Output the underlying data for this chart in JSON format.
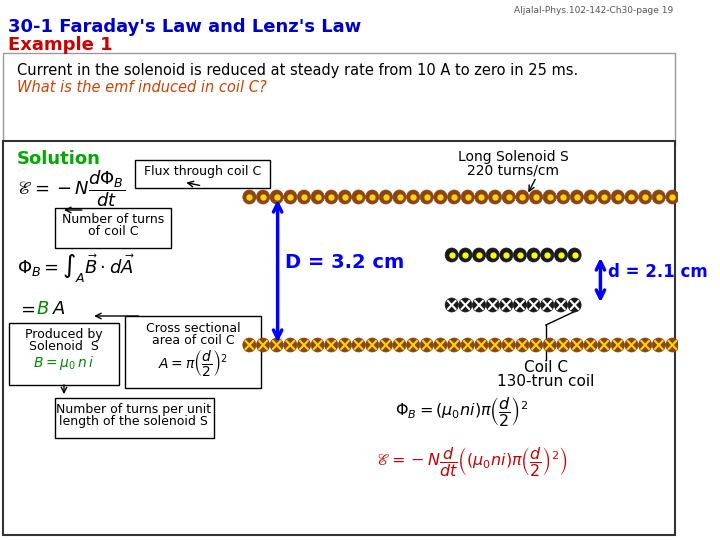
{
  "bg_color": "#f0f0f0",
  "title_line1": "30-1 Faraday's Law and Lenz's Law",
  "title_line2": "Example 1",
  "watermark": "Aljalal-Phys.102-142-Ch30-page 19",
  "problem_text": "Current in the solenoid is reduced at steady rate from 10 A to zero in 25 ms.",
  "problem_question": "What is the emf induced in coil C?",
  "solution_label": "Solution",
  "solenoid_label1": "Long Solenoid S",
  "solenoid_label2": "220 turns/cm",
  "coil_label1": "Coil C",
  "coil_label2": "130-trun coil",
  "D_label": "D = 3.2 cm",
  "d_label": "d = 2.1 cm",
  "flux_box_text": "Flux through coil C",
  "num_turns_box1": "Number of turns",
  "num_turns_box2": "of coil C",
  "produced_box1": "Produced by",
  "produced_box2": "Solenoid  S",
  "produced_box3": "B = μ₀ n i",
  "cross_sec_box1": "Cross sectional",
  "cross_sec_box2": "area of coil C",
  "cross_sec_box3": "A = π ( d/2 )²",
  "num_turns_per_unit1": "Number of turns per unit",
  "num_turns_per_unit2": "length of the solenoid S",
  "title_color": "#0000cc",
  "example_color": "#cc0000",
  "problem_color": "#000000",
  "question_color": "#cc4400",
  "solution_color": "#00aa00",
  "blue_color": "#0000ff",
  "green_color": "#008800",
  "dark_color": "#000000"
}
